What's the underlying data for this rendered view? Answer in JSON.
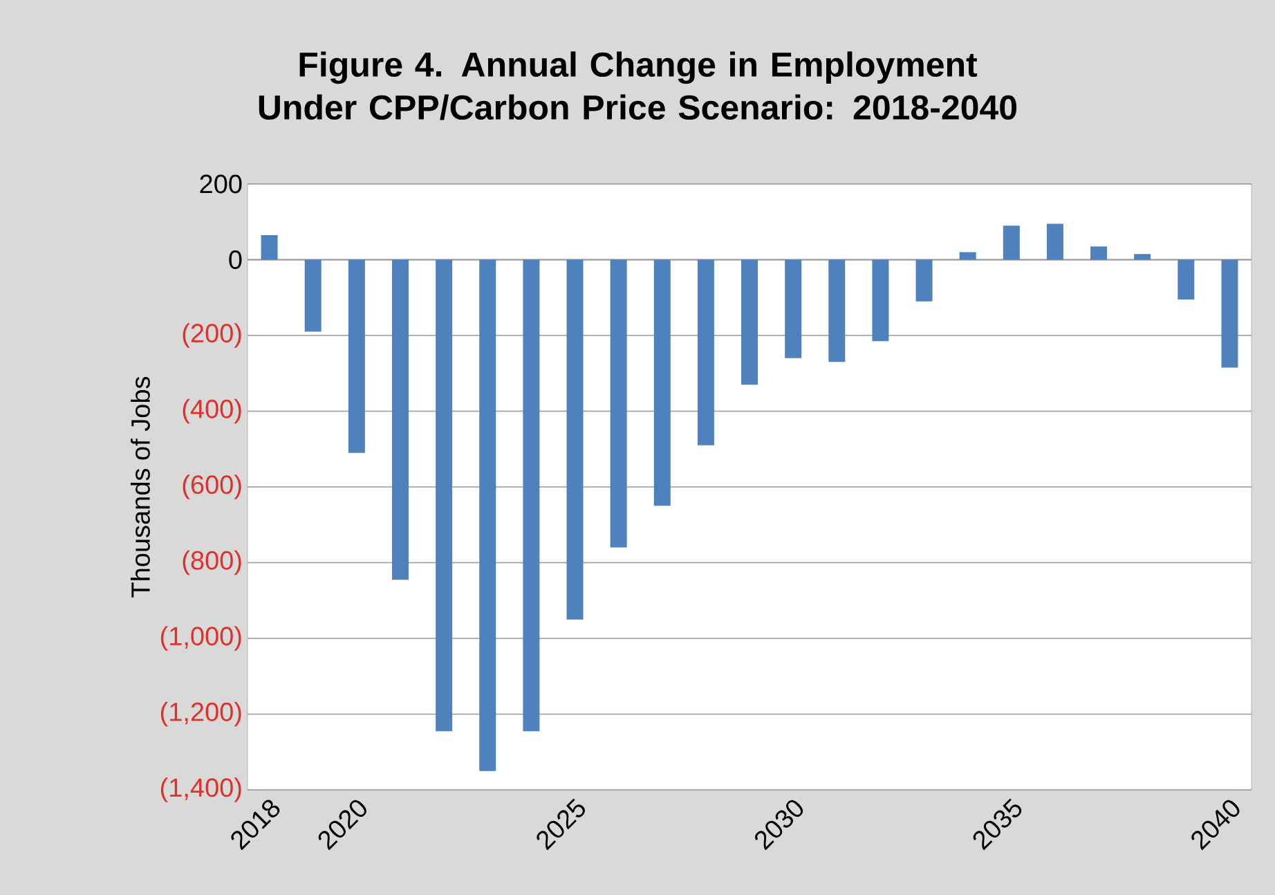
{
  "chart_data": {
    "type": "bar",
    "title": "Figure 4. Annual Change in Employment Under CPP/Carbon Price Scenario: 2018-2040",
    "ylabel": "Thousands of Jobs",
    "categories": [
      "2018",
      null,
      "2020",
      null,
      null,
      null,
      null,
      "2025",
      null,
      null,
      null,
      null,
      "2030",
      null,
      null,
      null,
      null,
      "2035",
      null,
      null,
      null,
      null,
      "2040"
    ],
    "values": [
      65,
      -190,
      -510,
      -845,
      -1245,
      -1350,
      -1245,
      -950,
      -760,
      -650,
      -490,
      -330,
      -260,
      -270,
      -215,
      -110,
      20,
      90,
      95,
      35,
      15,
      -105,
      -285
    ],
    "color": "#4f81bd",
    "ylim": [
      -1400,
      200
    ],
    "yticks": [
      200,
      0,
      {
        "value": -200,
        "label": "(200)"
      },
      {
        "value": -400,
        "label": "(400)"
      },
      {
        "value": -600,
        "label": "(600)"
      },
      {
        "value": -800,
        "label": "(800)"
      },
      {
        "value": -1000,
        "label": "(1,000)"
      },
      {
        "value": -1200,
        "label": "(1,200)"
      },
      {
        "value": -1400,
        "label": "(1,400)"
      }
    ],
    "grid": "y"
  }
}
